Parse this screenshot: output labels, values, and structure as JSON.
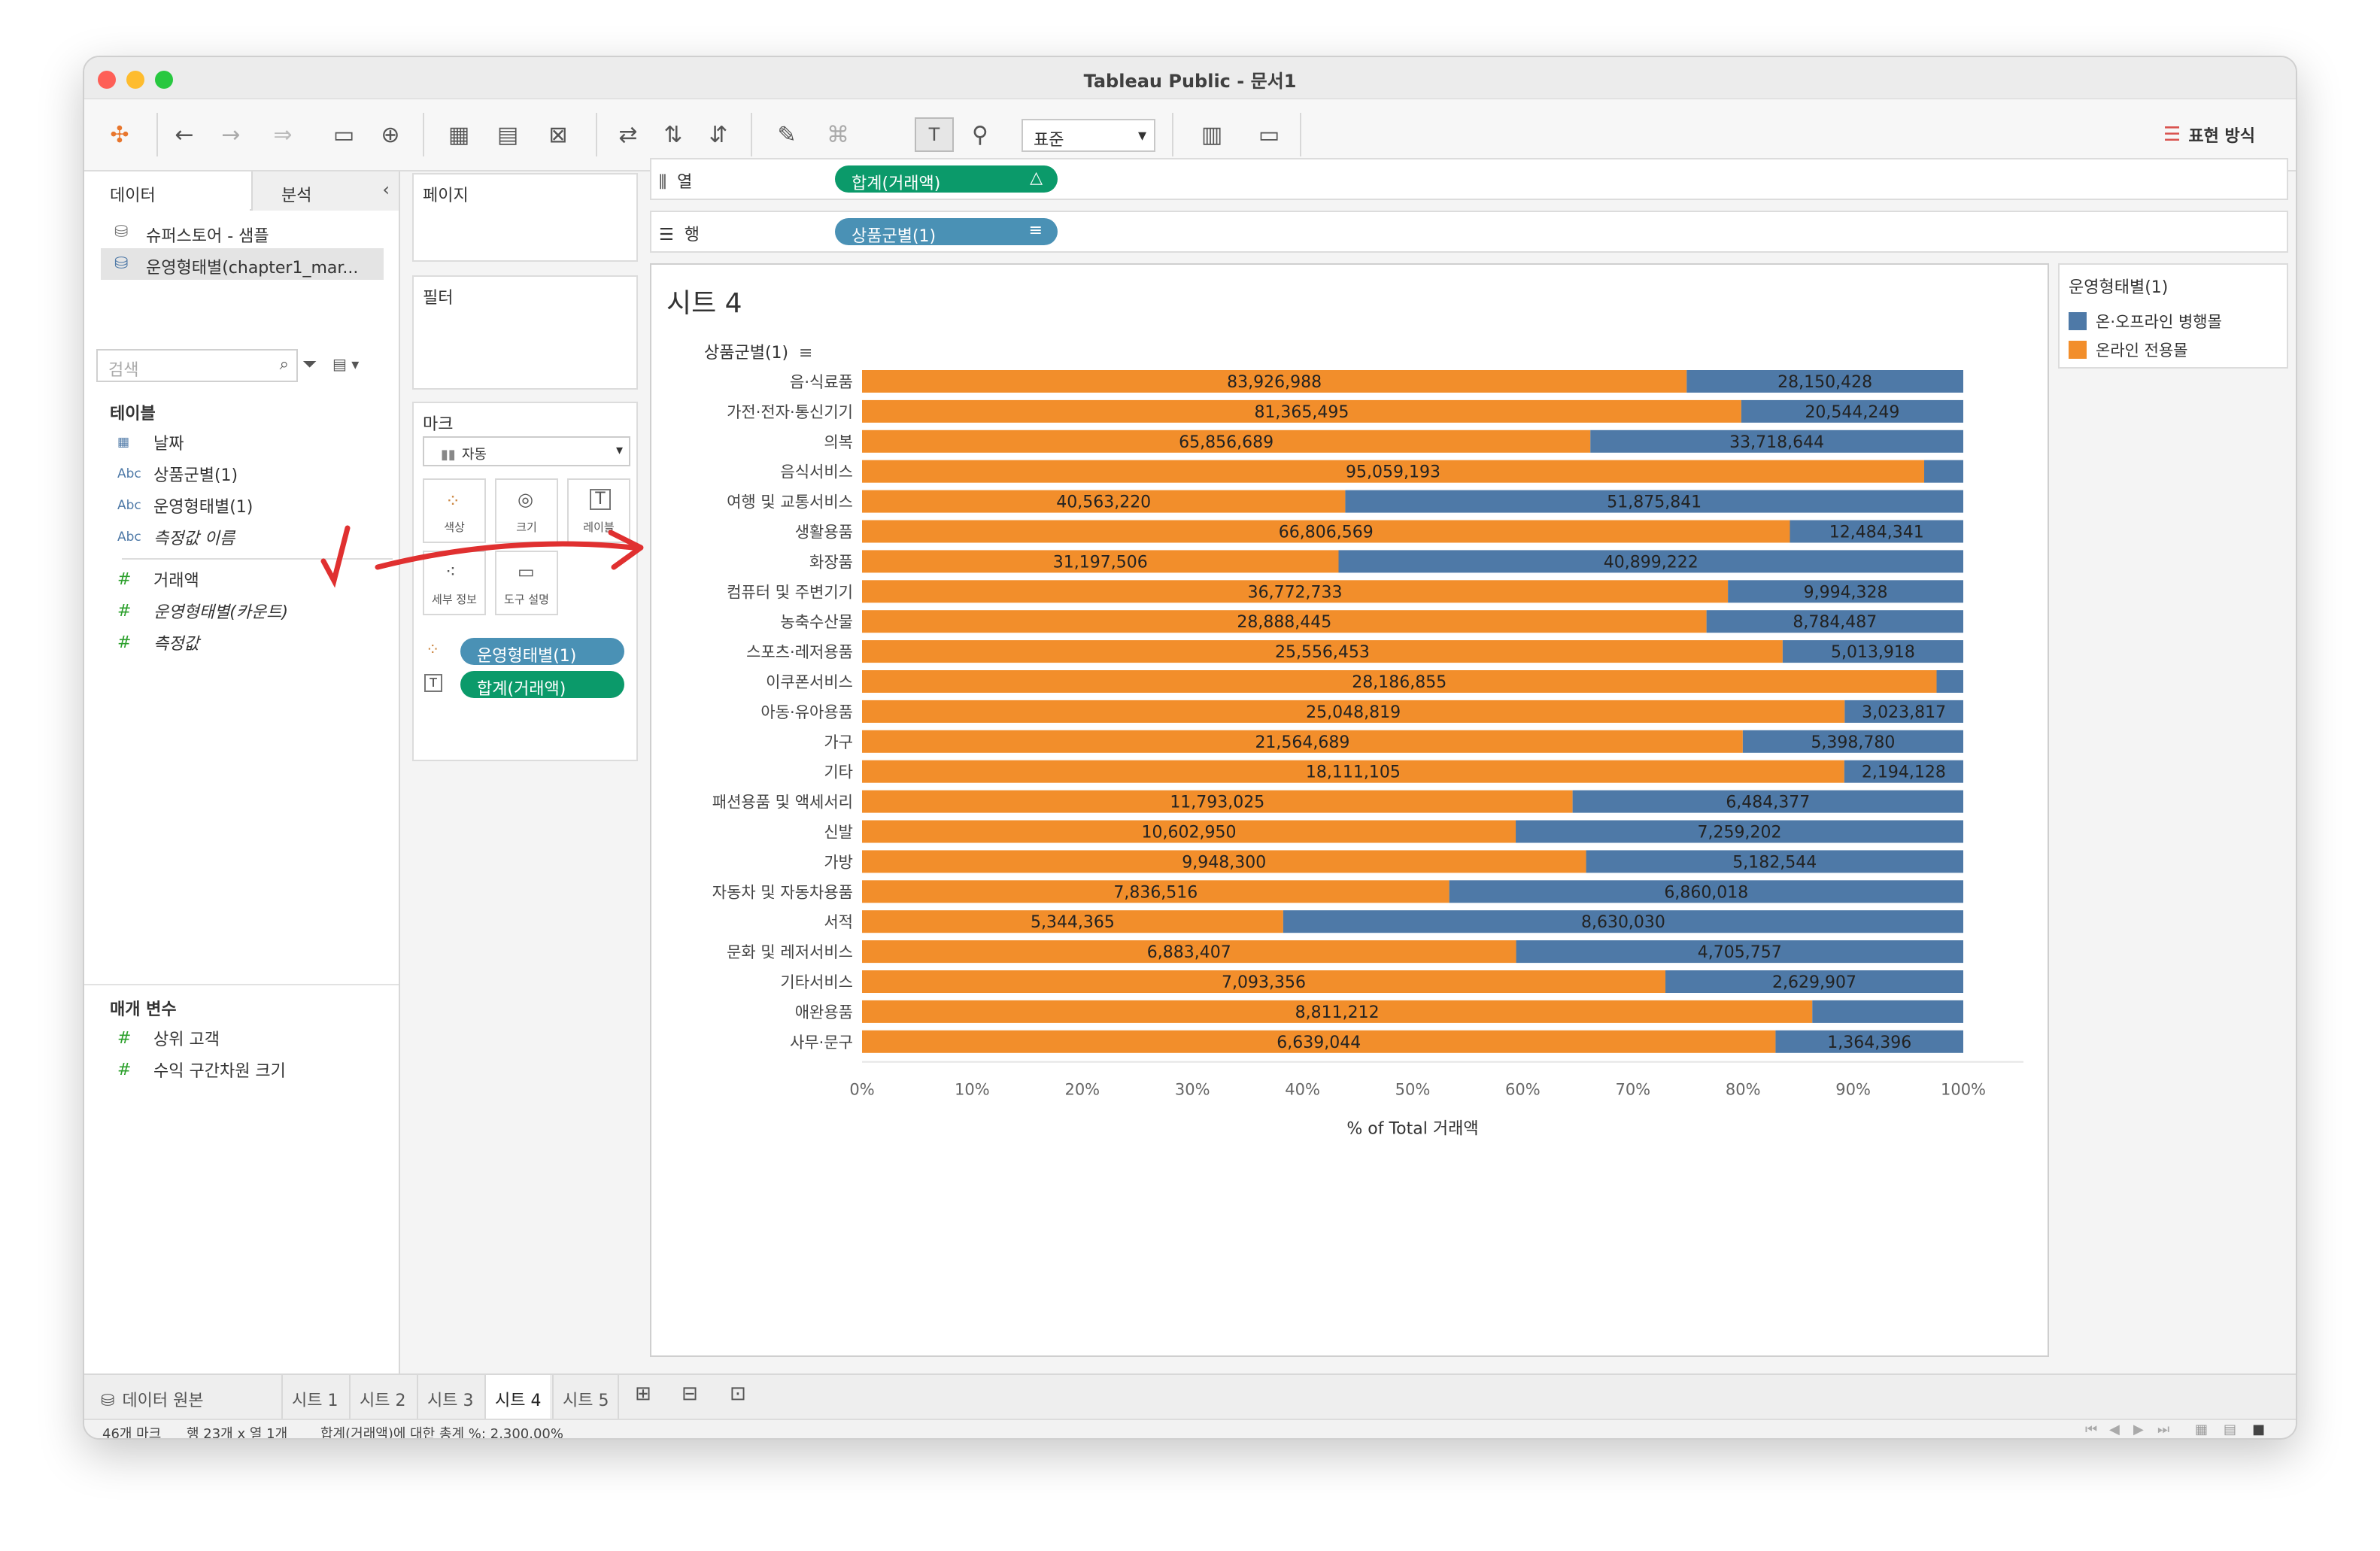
{
  "window": {
    "title": "Tableau Public - 문서1"
  },
  "toolbar": {
    "format_dropdown": "표준",
    "show_me": "표현 방식"
  },
  "left_panel": {
    "tabs": [
      "데이터",
      "분석"
    ],
    "sources": [
      "슈퍼스토어 - 샘플",
      "운영형태별(chapter1_mar..."
    ],
    "search_placeholder": "검색",
    "tables_heading": "테이블",
    "fields": [
      {
        "icon": "calendar-icon",
        "type": "date",
        "name": "날짜",
        "italic": false
      },
      {
        "icon": "abc-icon",
        "type": "Abc",
        "name": "상품군별(1)",
        "italic": false
      },
      {
        "icon": "abc-icon",
        "type": "Abc",
        "name": "운영형태별(1)",
        "italic": false
      },
      {
        "icon": "abc-icon",
        "type": "Abc",
        "name": "측정값 이름",
        "italic": true
      },
      {
        "icon": "hash-icon",
        "type": "#",
        "name": "거래액",
        "italic": false
      },
      {
        "icon": "hash-icon",
        "type": "#",
        "name": "운영형태별(카운트)",
        "italic": true
      },
      {
        "icon": "hash-icon",
        "type": "#",
        "name": "측정값",
        "italic": true
      }
    ],
    "params_heading": "매개 변수",
    "params": [
      "상위 고객",
      "수익 구간차원 크기"
    ]
  },
  "middle": {
    "pages_label": "페이지",
    "filters_label": "필터",
    "marks_label": "마크",
    "mark_type": "자동",
    "mark_buttons": [
      "색상",
      "크기",
      "레이블",
      "세부 정보",
      "도구 설명"
    ],
    "mark_pills": [
      "운영형태별(1)",
      "합계(거래액)"
    ]
  },
  "shelves": {
    "columns_label": "열",
    "columns_pill": "합계(거래액)",
    "rows_label": "행",
    "rows_pill": "상품군별(1)"
  },
  "sheet": {
    "title": "시트 4"
  },
  "legend": {
    "title": "운영형태별(1)",
    "items": [
      {
        "label": "온·오프라인 병행몰",
        "color": "#4e79a7"
      },
      {
        "label": "온라인 전용몰",
        "color": "#f28e2b"
      }
    ]
  },
  "chart_data": {
    "type": "bar",
    "stacked": "100%",
    "orientation": "horizontal",
    "row_header": "상품군별(1)",
    "xlabel": "% of Total 거래액",
    "xlim": [
      0,
      100
    ],
    "ticks": [
      "0%",
      "10%",
      "20%",
      "30%",
      "40%",
      "50%",
      "60%",
      "70%",
      "80%",
      "90%",
      "100%"
    ],
    "categories": [
      "음·식료품",
      "가전·전자·통신기기",
      "의복",
      "음식서비스",
      "여행 및 교통서비스",
      "생활용품",
      "화장품",
      "컴퓨터 및 주변기기",
      "농축수산물",
      "스포츠·레저용품",
      "이쿠폰서비스",
      "아동·유아용품",
      "가구",
      "기타",
      "패션용품 및 액세서리",
      "신발",
      "가방",
      "자동차 및 자동차용품",
      "서적",
      "문화 및 레저서비스",
      "기타서비스",
      "애완용품",
      "사무·문구"
    ],
    "series": [
      {
        "name": "온라인 전용몰",
        "color": "#f28e2b",
        "values": [
          83926988,
          81365495,
          65856689,
          95059193,
          40563220,
          66806569,
          31197506,
          36772733,
          28888445,
          25556453,
          28186855,
          25048819,
          21564689,
          18111105,
          11793025,
          10602950,
          9948300,
          7836516,
          5344365,
          6883407,
          7093356,
          8811212,
          6639044
        ],
        "labels": [
          "83,926,988",
          "81,365,495",
          "65,856,689",
          "95,059,193",
          "40,563,220",
          "66,806,569",
          "31,197,506",
          "36,772,733",
          "28,888,445",
          "25,556,453",
          "28,186,855",
          "25,048,819",
          "21,564,689",
          "18,111,105",
          "11,793,025",
          "10,602,950",
          "9,948,300",
          "7,836,516",
          "5,344,365",
          "6,883,407",
          "7,093,356",
          "8,811,212",
          "6,639,044"
        ]
      },
      {
        "name": "온·오프라인 병행몰",
        "color": "#4e79a7",
        "values": [
          28150428,
          20544249,
          33718644,
          3500000,
          51875841,
          12484341,
          40899222,
          9994328,
          8784487,
          5013918,
          700000,
          3023817,
          5398780,
          2194128,
          6484377,
          7259202,
          5182544,
          6860018,
          8630030,
          4705757,
          2629907,
          1400000,
          1364396
        ],
        "labels": [
          "28,150,428",
          "20,544,249",
          "33,718,644",
          "",
          "51,875,841",
          "12,484,341",
          "40,899,222",
          "9,994,328",
          "8,784,487",
          "5,013,918",
          "",
          "3,023,817",
          "5,398,780",
          "2,194,128",
          "6,484,377",
          "7,259,202",
          "5,182,544",
          "6,860,018",
          "8,630,030",
          "4,705,757",
          "2,629,907",
          "",
          "1,364,396"
        ]
      }
    ]
  },
  "sheet_tabs": {
    "datasource": "데이터 원본",
    "tabs": [
      "시트 1",
      "시트 2",
      "시트 3",
      "시트 4",
      "시트 5"
    ],
    "active": 3
  },
  "status": {
    "marks": "46개 마크",
    "rows_cols": "행 23개 x 열 1개",
    "sum": "합계(거래액)에 대한 총계 %: 2,300.00%"
  }
}
